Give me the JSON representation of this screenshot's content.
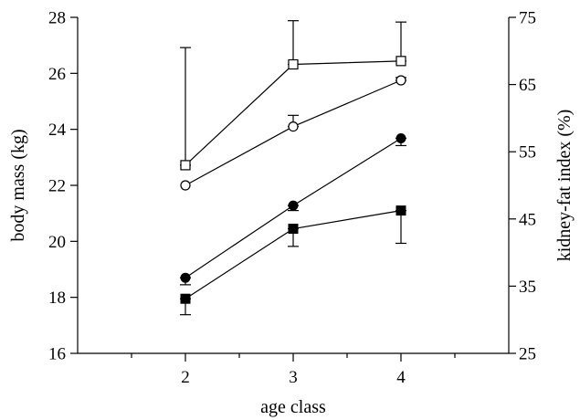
{
  "chart_data": {
    "type": "line",
    "xlabel": "age class",
    "ylabel": "body mass (kg)",
    "y2label": "kidney-fat index (%)",
    "categories": [
      "2",
      "3",
      "4"
    ],
    "x": [
      2,
      3,
      4
    ],
    "xlim": [
      1,
      5
    ],
    "ylim": [
      16,
      28
    ],
    "y2lim": [
      25,
      75
    ],
    "yticks": [
      "16",
      "18",
      "20",
      "22",
      "24",
      "26",
      "28"
    ],
    "y2ticks": [
      "25",
      "35",
      "45",
      "55",
      "65",
      "75"
    ],
    "grid": false,
    "legend": "none",
    "series": [
      {
        "axis": "right",
        "marker": "open-square",
        "values": [
          53,
          68,
          68.5
        ],
        "error_upper": [
          70.5,
          74.5,
          74.3
        ],
        "error_lower": [
          53,
          68,
          68.5
        ]
      },
      {
        "axis": "left",
        "marker": "open-circle",
        "values": [
          22.0,
          24.1,
          25.75
        ],
        "error_upper": [
          22.0,
          24.5,
          25.85
        ],
        "error_lower": [
          22.0,
          24.1,
          25.75
        ]
      },
      {
        "axis": "left",
        "marker": "filled-circle",
        "values": [
          18.7,
          21.28,
          23.68
        ],
        "error_upper": [
          18.7,
          21.28,
          23.68
        ],
        "error_lower": [
          18.45,
          21.1,
          23.42
        ]
      },
      {
        "axis": "left",
        "marker": "filled-square",
        "values": [
          17.95,
          20.45,
          21.1
        ],
        "error_upper": [
          17.95,
          20.45,
          21.1
        ],
        "error_lower": [
          17.38,
          19.82,
          19.93
        ]
      }
    ]
  }
}
